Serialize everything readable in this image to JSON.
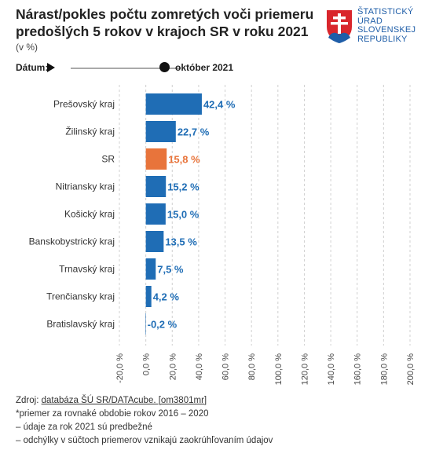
{
  "header": {
    "title_line1": "Nárast/pokles počtu zomretých voči priemeru",
    "title_line2": "predošlých 5 rokov v krajoch SR v roku 2021",
    "unit": "(v %)"
  },
  "logo": {
    "lines": [
      "ŠTATISTICKÝ",
      "ÚRAD",
      "SLOVENSKEJ",
      "REPUBLIKY"
    ]
  },
  "date_control": {
    "label": "Dátum:",
    "value": "október 2021"
  },
  "chart_data": {
    "type": "bar",
    "orientation": "horizontal",
    "categories": [
      "Prešovský kraj",
      "Žilinský kraj",
      "SR",
      "Nitriansky kraj",
      "Košický kraj",
      "Banskobystrický kraj",
      "Trnavský kraj",
      "Trenčiansky kraj",
      "Bratislavský kraj"
    ],
    "values": [
      42.4,
      22.7,
      15.8,
      15.2,
      15.0,
      13.5,
      7.5,
      4.2,
      -0.2
    ],
    "data_labels": [
      "42,4 %",
      "22,7 %",
      "15,8 %",
      "15,2 %",
      "15,0 %",
      "13,5 %",
      "7,5 %",
      "4,2 %",
      "-0,2 %"
    ],
    "highlight_category": "SR",
    "xlim": [
      -20,
      200
    ],
    "xticks": [
      -20,
      0,
      20,
      40,
      60,
      80,
      100,
      120,
      140,
      160,
      180,
      200
    ],
    "xtick_labels": [
      "-20,0 %",
      "0,0 %",
      "20,0 %",
      "40,0 %",
      "60,0 %",
      "80,0 %",
      "100,0 %",
      "120,0 %",
      "140,0 %",
      "160,0 %",
      "180,0 %",
      "200,0 %"
    ],
    "grid": "vertical dashed",
    "colors": {
      "default": "#1f6db5",
      "highlight": "#e8743b"
    }
  },
  "footer": {
    "source_prefix": "Zdroj: ",
    "source_link": "databáza ŠÚ SR/DATAcube. [om3801mr]",
    "notes": [
      "*priemer za rovnaké obdobie rokov 2016 – 2020",
      "– údaje za rok 2021 sú predbežné",
      "– odchýlky v súčtoch priemerov vznikajú zaokrúhľovaním údajov"
    ]
  }
}
